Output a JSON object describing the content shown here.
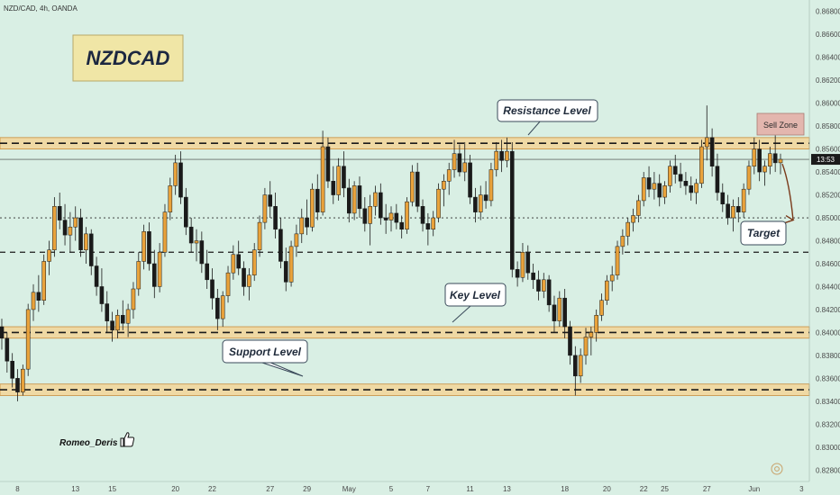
{
  "header": {
    "symbol": "NZD/CAD, 4h, OANDA"
  },
  "chart_data": {
    "type": "candlestick",
    "title": "NZDCAD",
    "symbol": "NZD/CAD",
    "timeframe": "4h",
    "broker": "OANDA",
    "ylim": [
      0.827,
      0.869
    ],
    "y_ticks": [
      "0.86800",
      "0.86600",
      "0.86400",
      "0.86200",
      "0.86000",
      "0.85800",
      "0.85600",
      "0.85400",
      "0.85200",
      "0.85000",
      "0.84800",
      "0.84600",
      "0.84400",
      "0.84200",
      "0.84000",
      "0.83800",
      "0.83600",
      "0.83400",
      "0.83200",
      "0.83000",
      "0.82800"
    ],
    "x_ticks": [
      {
        "label": "8",
        "bar": 3
      },
      {
        "label": "13",
        "bar": 14
      },
      {
        "label": "15",
        "bar": 21
      },
      {
        "label": "20",
        "bar": 33
      },
      {
        "label": "22",
        "bar": 40
      },
      {
        "label": "27",
        "bar": 51
      },
      {
        "label": "29",
        "bar": 58
      },
      {
        "label": "May",
        "bar": 66
      },
      {
        "label": "5",
        "bar": 74
      },
      {
        "label": "7",
        "bar": 81
      },
      {
        "label": "11",
        "bar": 89
      },
      {
        "label": "13",
        "bar": 96
      },
      {
        "label": "18",
        "bar": 107
      },
      {
        "label": "20",
        "bar": 115
      },
      {
        "label": "22",
        "bar": 122
      },
      {
        "label": "25",
        "bar": 126
      },
      {
        "label": "27",
        "bar": 134
      },
      {
        "label": "Jun",
        "bar": 143
      },
      {
        "label": "3",
        "bar": 152
      }
    ],
    "current_price": {
      "label": "13:53",
      "value": 0.8551
    },
    "zones": [
      {
        "name": "Resistance Level",
        "from": 0.856,
        "to": 0.857,
        "line": 0.8565
      },
      {
        "name": "Key Level",
        "from": 0.8395,
        "to": 0.8405,
        "line": 0.84
      },
      {
        "name": "Support Level",
        "from": 0.8345,
        "to": 0.8355,
        "line": 0.835
      }
    ],
    "dashed_lines": [
      0.847
    ],
    "dotted_lines": [
      0.85
    ],
    "annotations": {
      "resistance": "Resistance Level",
      "key": "Key Level",
      "support": "Support Level",
      "sell_zone": "Sell Zone",
      "target": "Target"
    },
    "projection": {
      "from": 0.8547,
      "to": 0.8498
    },
    "ohlc": [
      [
        0.8405,
        0.8412,
        0.8385,
        0.8395
      ],
      [
        0.8395,
        0.84,
        0.8365,
        0.8375
      ],
      [
        0.8375,
        0.8382,
        0.8352,
        0.836
      ],
      [
        0.836,
        0.8368,
        0.834,
        0.8348
      ],
      [
        0.8348,
        0.8372,
        0.8345,
        0.8368
      ],
      [
        0.8368,
        0.8425,
        0.8362,
        0.842
      ],
      [
        0.842,
        0.8442,
        0.841,
        0.8435
      ],
      [
        0.8435,
        0.845,
        0.8418,
        0.8428
      ],
      [
        0.8428,
        0.8468,
        0.8424,
        0.8462
      ],
      [
        0.8462,
        0.848,
        0.845,
        0.8472
      ],
      [
        0.8472,
        0.8518,
        0.8466,
        0.851
      ],
      [
        0.851,
        0.8522,
        0.849,
        0.8498
      ],
      [
        0.8498,
        0.8512,
        0.8476,
        0.8485
      ],
      [
        0.8485,
        0.8505,
        0.847,
        0.8492
      ],
      [
        0.8492,
        0.851,
        0.848,
        0.85
      ],
      [
        0.85,
        0.8508,
        0.8466,
        0.8472
      ],
      [
        0.8472,
        0.8492,
        0.846,
        0.8486
      ],
      [
        0.8486,
        0.849,
        0.845,
        0.8458
      ],
      [
        0.8458,
        0.8466,
        0.8432,
        0.844
      ],
      [
        0.844,
        0.8456,
        0.8418,
        0.8425
      ],
      [
        0.8425,
        0.8436,
        0.84,
        0.841
      ],
      [
        0.841,
        0.8418,
        0.8392,
        0.8402
      ],
      [
        0.8402,
        0.842,
        0.8395,
        0.8415
      ],
      [
        0.8415,
        0.8428,
        0.8402,
        0.8408
      ],
      [
        0.8408,
        0.8425,
        0.8396,
        0.842
      ],
      [
        0.842,
        0.8444,
        0.8412,
        0.8438
      ],
      [
        0.8438,
        0.847,
        0.8432,
        0.8462
      ],
      [
        0.8462,
        0.8494,
        0.8455,
        0.8488
      ],
      [
        0.8488,
        0.8496,
        0.8454,
        0.846
      ],
      [
        0.846,
        0.8472,
        0.843,
        0.844
      ],
      [
        0.844,
        0.8478,
        0.8435,
        0.847
      ],
      [
        0.847,
        0.8512,
        0.8466,
        0.8505
      ],
      [
        0.8505,
        0.8535,
        0.8498,
        0.8528
      ],
      [
        0.8528,
        0.8555,
        0.852,
        0.8548
      ],
      [
        0.8548,
        0.8558,
        0.8512,
        0.8518
      ],
      [
        0.8518,
        0.8526,
        0.8485,
        0.8492
      ],
      [
        0.8492,
        0.85,
        0.847,
        0.8478
      ],
      [
        0.8478,
        0.849,
        0.8462,
        0.848
      ],
      [
        0.848,
        0.8488,
        0.8452,
        0.846
      ],
      [
        0.846,
        0.8472,
        0.8438,
        0.8446
      ],
      [
        0.8446,
        0.8456,
        0.842,
        0.843
      ],
      [
        0.843,
        0.8438,
        0.8402,
        0.8412
      ],
      [
        0.8412,
        0.8436,
        0.8405,
        0.8432
      ],
      [
        0.8432,
        0.8458,
        0.8426,
        0.8452
      ],
      [
        0.8452,
        0.8476,
        0.8446,
        0.8468
      ],
      [
        0.8468,
        0.848,
        0.845,
        0.8456
      ],
      [
        0.8456,
        0.8462,
        0.8432,
        0.844
      ],
      [
        0.844,
        0.8456,
        0.8428,
        0.845
      ],
      [
        0.845,
        0.8478,
        0.8445,
        0.8472
      ],
      [
        0.8472,
        0.8502,
        0.8466,
        0.8496
      ],
      [
        0.8496,
        0.8526,
        0.849,
        0.852
      ],
      [
        0.852,
        0.8532,
        0.85,
        0.851
      ],
      [
        0.851,
        0.8522,
        0.8482,
        0.849
      ],
      [
        0.849,
        0.85,
        0.8456,
        0.8462
      ],
      [
        0.8462,
        0.8474,
        0.8436,
        0.8444
      ],
      [
        0.8444,
        0.848,
        0.844,
        0.8475
      ],
      [
        0.8475,
        0.8494,
        0.8466,
        0.8486
      ],
      [
        0.8486,
        0.8508,
        0.8478,
        0.85
      ],
      [
        0.85,
        0.8516,
        0.8485,
        0.8492
      ],
      [
        0.8492,
        0.853,
        0.8488,
        0.8525
      ],
      [
        0.8525,
        0.8538,
        0.8498,
        0.8505
      ],
      [
        0.8505,
        0.8576,
        0.8502,
        0.8562
      ],
      [
        0.8562,
        0.857,
        0.8526,
        0.8532
      ],
      [
        0.8532,
        0.8545,
        0.8512,
        0.852
      ],
      [
        0.852,
        0.8552,
        0.8515,
        0.8545
      ],
      [
        0.8545,
        0.8558,
        0.8518,
        0.8526
      ],
      [
        0.8526,
        0.8534,
        0.8496,
        0.8504
      ],
      [
        0.8504,
        0.8532,
        0.8498,
        0.8528
      ],
      [
        0.8528,
        0.8536,
        0.85,
        0.8508
      ],
      [
        0.8508,
        0.8518,
        0.8488,
        0.8495
      ],
      [
        0.8495,
        0.852,
        0.8476,
        0.851
      ],
      [
        0.851,
        0.8528,
        0.8502,
        0.8522
      ],
      [
        0.8522,
        0.853,
        0.8494,
        0.85
      ],
      [
        0.85,
        0.8512,
        0.8486,
        0.8498
      ],
      [
        0.8498,
        0.851,
        0.8488,
        0.8504
      ],
      [
        0.8504,
        0.8512,
        0.849,
        0.8496
      ],
      [
        0.8496,
        0.8502,
        0.8482,
        0.849
      ],
      [
        0.849,
        0.8518,
        0.8486,
        0.8514
      ],
      [
        0.8514,
        0.8546,
        0.851,
        0.854
      ],
      [
        0.854,
        0.8548,
        0.8505,
        0.851
      ],
      [
        0.851,
        0.8516,
        0.8488,
        0.8495
      ],
      [
        0.8495,
        0.8504,
        0.8476,
        0.849
      ],
      [
        0.849,
        0.8506,
        0.8484,
        0.85
      ],
      [
        0.85,
        0.853,
        0.8496,
        0.8525
      ],
      [
        0.8525,
        0.8538,
        0.851,
        0.8532
      ],
      [
        0.8532,
        0.8548,
        0.852,
        0.8542
      ],
      [
        0.8542,
        0.8568,
        0.8535,
        0.8556
      ],
      [
        0.8556,
        0.8564,
        0.8536,
        0.854
      ],
      [
        0.854,
        0.8566,
        0.8532,
        0.8548
      ],
      [
        0.8548,
        0.8555,
        0.8512,
        0.8518
      ],
      [
        0.8518,
        0.8526,
        0.8496,
        0.8505
      ],
      [
        0.8505,
        0.8528,
        0.8498,
        0.852
      ],
      [
        0.852,
        0.8532,
        0.8508,
        0.8515
      ],
      [
        0.8515,
        0.8548,
        0.851,
        0.8542
      ],
      [
        0.8542,
        0.8566,
        0.8536,
        0.8558
      ],
      [
        0.8558,
        0.8568,
        0.854,
        0.855
      ],
      [
        0.855,
        0.857,
        0.8544,
        0.8558
      ],
      [
        0.8558,
        0.8566,
        0.8448,
        0.8455
      ],
      [
        0.8455,
        0.8462,
        0.844,
        0.8448
      ],
      [
        0.8448,
        0.8478,
        0.8444,
        0.847
      ],
      [
        0.847,
        0.8476,
        0.8446,
        0.8452
      ],
      [
        0.8452,
        0.846,
        0.8438,
        0.8446
      ],
      [
        0.8446,
        0.8454,
        0.8428,
        0.8436
      ],
      [
        0.8436,
        0.8452,
        0.843,
        0.8446
      ],
      [
        0.8446,
        0.845,
        0.8418,
        0.8424
      ],
      [
        0.8424,
        0.8432,
        0.84,
        0.841
      ],
      [
        0.841,
        0.8436,
        0.8405,
        0.843
      ],
      [
        0.843,
        0.8438,
        0.8395,
        0.8405
      ],
      [
        0.8405,
        0.841,
        0.8372,
        0.838
      ],
      [
        0.838,
        0.8388,
        0.8345,
        0.8362
      ],
      [
        0.8362,
        0.8386,
        0.8356,
        0.838
      ],
      [
        0.838,
        0.8404,
        0.8372,
        0.8396
      ],
      [
        0.8396,
        0.8405,
        0.838,
        0.84
      ],
      [
        0.84,
        0.842,
        0.8392,
        0.8415
      ],
      [
        0.8415,
        0.8434,
        0.841,
        0.8428
      ],
      [
        0.8428,
        0.845,
        0.8424,
        0.8445
      ],
      [
        0.8445,
        0.8458,
        0.8436,
        0.845
      ],
      [
        0.845,
        0.848,
        0.8446,
        0.8475
      ],
      [
        0.8475,
        0.849,
        0.8468,
        0.8484
      ],
      [
        0.8484,
        0.85,
        0.8476,
        0.8496
      ],
      [
        0.8496,
        0.8508,
        0.8488,
        0.8502
      ],
      [
        0.8502,
        0.852,
        0.8496,
        0.8515
      ],
      [
        0.8515,
        0.854,
        0.851,
        0.8535
      ],
      [
        0.8535,
        0.8545,
        0.8518,
        0.8525
      ],
      [
        0.8525,
        0.854,
        0.8516,
        0.853
      ],
      [
        0.853,
        0.8538,
        0.851,
        0.8518
      ],
      [
        0.8518,
        0.8532,
        0.8512,
        0.8528
      ],
      [
        0.8528,
        0.855,
        0.8522,
        0.8545
      ],
      [
        0.8545,
        0.8555,
        0.853,
        0.8538
      ],
      [
        0.8538,
        0.8548,
        0.8526,
        0.8532
      ],
      [
        0.8532,
        0.854,
        0.852,
        0.8528
      ],
      [
        0.8528,
        0.8536,
        0.8515,
        0.8522
      ],
      [
        0.8522,
        0.8534,
        0.8512,
        0.853
      ],
      [
        0.853,
        0.8568,
        0.8526,
        0.8562
      ],
      [
        0.8562,
        0.8598,
        0.855,
        0.857
      ],
      [
        0.857,
        0.8578,
        0.8536,
        0.8545
      ],
      [
        0.8545,
        0.8556,
        0.8515,
        0.8522
      ],
      [
        0.8522,
        0.853,
        0.8505,
        0.8512
      ],
      [
        0.8512,
        0.852,
        0.8494,
        0.85
      ],
      [
        0.85,
        0.8516,
        0.8488,
        0.851
      ],
      [
        0.851,
        0.8518,
        0.8496,
        0.8505
      ],
      [
        0.8505,
        0.853,
        0.85,
        0.8525
      ],
      [
        0.8525,
        0.855,
        0.852,
        0.8545
      ],
      [
        0.8545,
        0.857,
        0.8538,
        0.856
      ],
      [
        0.856,
        0.8568,
        0.8532,
        0.854
      ],
      [
        0.854,
        0.855,
        0.8528,
        0.8545
      ],
      [
        0.8545,
        0.8562,
        0.8538,
        0.8556
      ],
      [
        0.8556,
        0.8572,
        0.854,
        0.8548
      ],
      [
        0.8548,
        0.8556,
        0.8538,
        0.8551
      ]
    ]
  },
  "watermark": {
    "author": "Romeo_Deris"
  },
  "colors": {
    "background": "#d9efe4",
    "candle_up": "#e9a23b",
    "candle_down": "#1a1a1a",
    "zone_fill": "#efd9a4",
    "zone_border": "#c98d3c",
    "title_fill": "#f0e6a6",
    "sell_zone_fill": "#e3b6ae",
    "arrow": "#7a3a1a",
    "price_tag": "#1b1b1b"
  },
  "icons": {
    "thumb": "thumbs-up-icon",
    "logo": "tradingview-logo-icon"
  }
}
